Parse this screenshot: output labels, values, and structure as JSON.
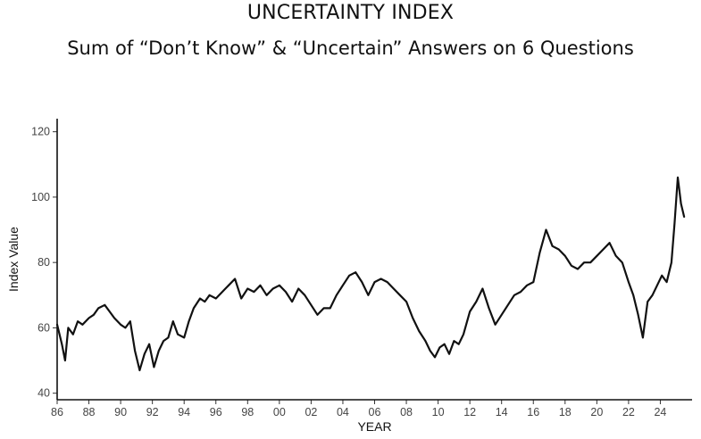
{
  "chart_data": {
    "type": "line",
    "title": "UNCERTAINTY INDEX",
    "subtitle": "Sum of “Don’t Know” & “Uncertain” Answers on 6 Questions",
    "xlabel": "YEAR",
    "ylabel": "Index Value",
    "xlim": [
      1986,
      2026
    ],
    "ylim": [
      38,
      124
    ],
    "x_ticks": [
      1986,
      1988,
      1990,
      1992,
      1994,
      1996,
      1998,
      2000,
      2002,
      2004,
      2006,
      2008,
      2010,
      2012,
      2014,
      2016,
      2018,
      2020,
      2022,
      2024
    ],
    "x_tick_labels": [
      "86",
      "88",
      "90",
      "92",
      "94",
      "96",
      "98",
      "00",
      "02",
      "04",
      "06",
      "08",
      "10",
      "12",
      "14",
      "16",
      "18",
      "20",
      "22",
      "24"
    ],
    "y_ticks": [
      40,
      60,
      80,
      100,
      120
    ],
    "y_tick_labels": [
      "40",
      "60",
      "80",
      "100",
      "120"
    ],
    "grid": false,
    "line_color": "#111111",
    "series": [
      {
        "x": [
          1986.0,
          1986.3,
          1986.5,
          1986.7,
          1987.0,
          1987.3,
          1987.6,
          1988.0,
          1988.3,
          1988.6,
          1989.0,
          1989.3,
          1989.6,
          1990.0,
          1990.3,
          1990.6,
          1990.9,
          1991.2,
          1991.5,
          1991.8,
          1992.1,
          1992.4,
          1992.7,
          1993.0,
          1993.3,
          1993.6,
          1994.0,
          1994.3,
          1994.6,
          1995.0,
          1995.3,
          1995.6,
          1996.0,
          1996.4,
          1996.8,
          1997.2,
          1997.6,
          1998.0,
          1998.4,
          1998.8,
          1999.2,
          1999.6,
          2000.0,
          2000.4,
          2000.8,
          2001.2,
          2001.6,
          2002.0,
          2002.4,
          2002.8,
          2003.2,
          2003.6,
          2004.0,
          2004.4,
          2004.8,
          2005.2,
          2005.6,
          2006.0,
          2006.4,
          2006.8,
          2007.2,
          2007.6,
          2008.0,
          2008.4,
          2008.8,
          2009.2,
          2009.5,
          2009.8,
          2010.1,
          2010.4,
          2010.7,
          2011.0,
          2011.3,
          2011.6,
          2012.0,
          2012.4,
          2012.8,
          2013.2,
          2013.6,
          2014.0,
          2014.4,
          2014.8,
          2015.2,
          2015.6,
          2016.0,
          2016.4,
          2016.8,
          2017.2,
          2017.6,
          2018.0,
          2018.4,
          2018.8,
          2019.2,
          2019.6,
          2020.0,
          2020.4,
          2020.8,
          2021.2,
          2021.6,
          2022.0,
          2022.3,
          2022.6,
          2022.9,
          2023.2,
          2023.5,
          2023.8,
          2024.1,
          2024.4,
          2024.7,
          2024.9,
          2025.1,
          2025.3,
          2025.5
        ],
        "y": [
          61,
          55,
          50,
          60,
          58,
          62,
          61,
          63,
          64,
          66,
          67,
          65,
          63,
          61,
          60,
          62,
          53,
          47,
          52,
          55,
          48,
          53,
          56,
          57,
          62,
          58,
          57,
          62,
          66,
          69,
          68,
          70,
          69,
          71,
          73,
          75,
          69,
          72,
          71,
          73,
          70,
          72,
          73,
          71,
          68,
          72,
          70,
          67,
          64,
          66,
          66,
          70,
          73,
          76,
          77,
          74,
          70,
          74,
          75,
          74,
          72,
          70,
          68,
          63,
          59,
          56,
          53,
          51,
          54,
          55,
          52,
          56,
          55,
          58,
          65,
          68,
          72,
          66,
          61,
          64,
          67,
          70,
          71,
          73,
          74,
          83,
          90,
          85,
          84,
          82,
          79,
          78,
          80,
          80,
          82,
          84,
          86,
          82,
          80,
          74,
          70,
          64,
          57,
          68,
          70,
          73,
          76,
          74,
          80,
          92,
          106,
          98,
          94
        ]
      }
    ]
  }
}
